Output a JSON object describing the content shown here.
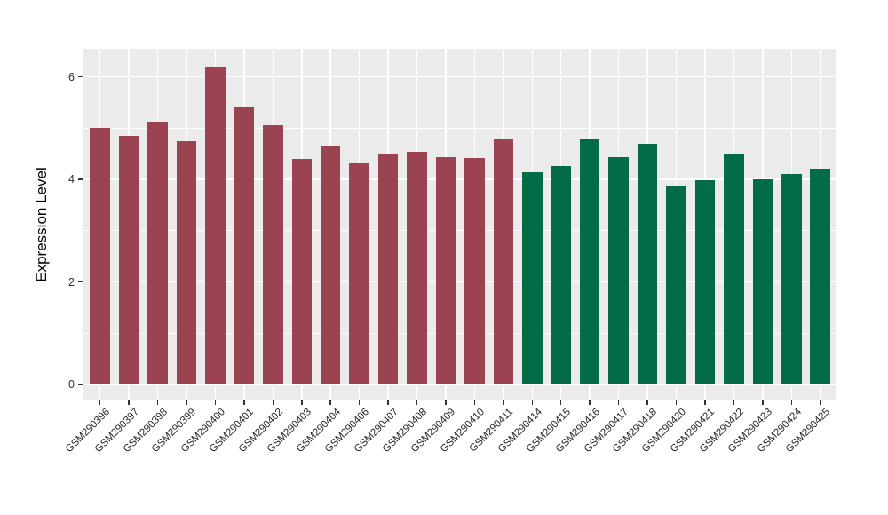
{
  "chart_data": {
    "type": "bar",
    "title": "",
    "xlabel": "",
    "ylabel": "Expression Level",
    "categories": [
      "GSM290396",
      "GSM290397",
      "GSM290398",
      "GSM290399",
      "GSM290400",
      "GSM290401",
      "GSM290402",
      "GSM290403",
      "GSM290404",
      "GSM290406",
      "GSM290407",
      "GSM290408",
      "GSM290409",
      "GSM290410",
      "GSM290411",
      "GSM290414",
      "GSM290415",
      "GSM290416",
      "GSM290417",
      "GSM290418",
      "GSM290420",
      "GSM290421",
      "GSM290422",
      "GSM290423",
      "GSM290424",
      "GSM290425"
    ],
    "values": [
      5.0,
      4.85,
      5.13,
      4.75,
      6.2,
      5.4,
      5.06,
      4.39,
      4.65,
      4.32,
      4.51,
      4.54,
      4.44,
      4.42,
      4.78,
      4.14,
      4.26,
      4.78,
      4.44,
      4.69,
      3.86,
      3.98,
      4.5,
      4.0,
      4.11,
      4.21
    ],
    "group_split_index": 15,
    "colors": {
      "group1": "#9C4351",
      "group2": "#026C49",
      "panel_background": "#EBEBEB",
      "gridline": "#FFFFFF",
      "axis_tick": "#333333"
    },
    "ylim": [
      0,
      6.55
    ],
    "yticks": [
      0,
      2,
      4,
      6
    ],
    "yticks_minor": [
      1,
      3,
      5
    ],
    "grid": true,
    "legend": "none",
    "bar_orientation": "vertical"
  }
}
